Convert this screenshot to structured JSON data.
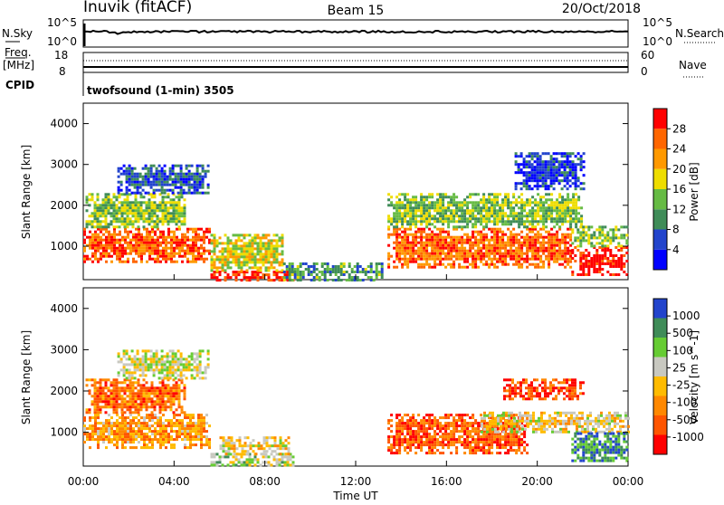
{
  "header": {
    "station": "Inuvik (fitACF)",
    "beam": "Beam 15",
    "date": "20/Oct/2018"
  },
  "noise_panel": {
    "left_label": "N.Sky",
    "right_label": "N.Search",
    "left_ticks": [
      "10^5",
      "10^0"
    ],
    "right_ticks": [
      "10^5",
      "10^0"
    ]
  },
  "freq_panel": {
    "left_label_1": "Freq.",
    "left_label_2": "[MHz]",
    "right_label": "Nave",
    "left_ticks": [
      "18",
      "8"
    ],
    "right_ticks": [
      "60",
      "0"
    ],
    "cpid_label": "CPID",
    "cpid_text": "twofsound (1-min) 3505"
  },
  "chart_data": [
    {
      "type": "heatmap",
      "name": "power",
      "ylabel": "Slant Range [km]",
      "yticks": [
        1000,
        2000,
        3000,
        4000
      ],
      "ylim": [
        180,
        4500
      ],
      "xlim": [
        0,
        24
      ],
      "colorbar_label": "Power [dB]",
      "colorbar_ticks": [
        "28",
        "24",
        "20",
        "16",
        "12",
        "8",
        "4"
      ],
      "colors": [
        "#0000ff",
        "#2244cc",
        "#3f8c58",
        "#66bb44",
        "#eedd00",
        "#ff9900",
        "#ff6600",
        "#ff0000"
      ],
      "bands": [
        {
          "t0": 0.0,
          "t1": 5.6,
          "r0": 650,
          "r1": 1450,
          "level": 0.82
        },
        {
          "t0": 0.1,
          "t1": 4.5,
          "r0": 1450,
          "r1": 2300,
          "level": 0.45
        },
        {
          "t0": 5.6,
          "t1": 9.3,
          "r0": 200,
          "r1": 400,
          "level": 0.95
        },
        {
          "t0": 5.6,
          "t1": 8.8,
          "r0": 400,
          "r1": 1300,
          "level": 0.55
        },
        {
          "t0": 8.8,
          "t1": 13.2,
          "r0": 200,
          "r1": 600,
          "level": 0.35
        },
        {
          "t0": 13.4,
          "t1": 21.5,
          "r0": 500,
          "r1": 1450,
          "level": 0.8
        },
        {
          "t0": 13.4,
          "t1": 22.0,
          "r0": 1450,
          "r1": 2300,
          "level": 0.45
        },
        {
          "t0": 21.5,
          "t1": 24.0,
          "r0": 300,
          "r1": 1000,
          "level": 0.98
        },
        {
          "t0": 21.5,
          "t1": 24.0,
          "r0": 1000,
          "r1": 1500,
          "level": 0.45
        },
        {
          "t0": 1.5,
          "t1": 5.5,
          "r0": 2300,
          "r1": 3000,
          "level": 0.2
        },
        {
          "t0": 19.0,
          "t1": 22.0,
          "r0": 2400,
          "r1": 3300,
          "level": 0.15
        }
      ]
    },
    {
      "type": "heatmap",
      "name": "velocity",
      "ylabel": "Slant Range [km]",
      "xlabel": "Time UT",
      "yticks": [
        1000,
        2000,
        3000,
        4000
      ],
      "ylim": [
        180,
        4500
      ],
      "xlim": [
        0,
        24
      ],
      "xticks": [
        "00:00",
        "04:00",
        "08:00",
        "12:00",
        "16:00",
        "20:00",
        "00:00"
      ],
      "colorbar_label": "Velocity [m s^-1]",
      "colorbar_ticks": [
        "1000",
        "500",
        "100",
        "25",
        "-25",
        "-100",
        "-500",
        "-1000"
      ],
      "colors": [
        "#ff0000",
        "#ff5500",
        "#ff8800",
        "#ffbb00",
        "#c8c8c0",
        "#66cc33",
        "#3f8c58",
        "#2244cc"
      ],
      "bands": [
        {
          "t0": 0.0,
          "t1": 5.6,
          "r0": 650,
          "r1": 1450,
          "level": 0.35
        },
        {
          "t0": 0.1,
          "t1": 4.5,
          "r0": 1450,
          "r1": 2300,
          "level": 0.25
        },
        {
          "t0": 5.6,
          "t1": 9.3,
          "r0": 200,
          "r1": 500,
          "level": 0.6
        },
        {
          "t0": 6.0,
          "t1": 9.0,
          "r0": 500,
          "r1": 900,
          "level": 0.5
        },
        {
          "t0": 13.4,
          "t1": 19.5,
          "r0": 500,
          "r1": 1450,
          "level": 0.2
        },
        {
          "t0": 17.5,
          "t1": 24.0,
          "r0": 1000,
          "r1": 1500,
          "level": 0.5
        },
        {
          "t0": 18.5,
          "t1": 22.0,
          "r0": 1800,
          "r1": 2300,
          "level": 0.15
        },
        {
          "t0": 21.5,
          "t1": 24.0,
          "r0": 300,
          "r1": 1000,
          "level": 0.82
        },
        {
          "t0": 1.5,
          "t1": 5.5,
          "r0": 2300,
          "r1": 3000,
          "level": 0.55
        }
      ]
    }
  ]
}
